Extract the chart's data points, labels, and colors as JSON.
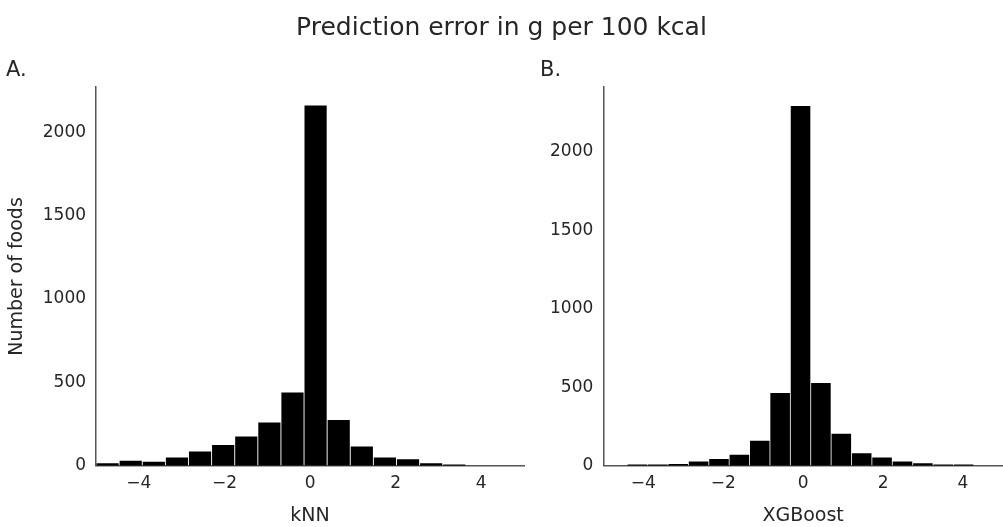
{
  "chart_data": [
    {
      "type": "histogram",
      "title": "A.",
      "xlabel": "kNN",
      "ylabel": "Number of foods",
      "annotations": [
        "Prediction error in g per 100 kcal"
      ],
      "color": "#000000",
      "grid": false,
      "bins": [
        -5,
        -4.46,
        -3.92,
        -3.38,
        -2.84,
        -2.3,
        -1.76,
        -1.22,
        -0.68,
        -0.14,
        0.4,
        0.94,
        1.48,
        2.02,
        2.56,
        3.1,
        3.64
      ],
      "values": [
        15,
        30,
        25,
        50,
        85,
        125,
        175,
        260,
        440,
        2160,
        275,
        115,
        50,
        40,
        15,
        8
      ],
      "xlim": [
        -5,
        5
      ],
      "xticks": [
        -4,
        -2,
        0,
        2,
        4
      ],
      "ylim": [
        0,
        2270
      ],
      "yticks": [
        0,
        500,
        1000,
        1500,
        2000
      ]
    },
    {
      "type": "histogram",
      "title": "B.",
      "xlabel": "XGBoost",
      "color": "#000000",
      "grid": false,
      "bins": [
        -4.4,
        -3.89,
        -3.38,
        -2.87,
        -2.36,
        -1.85,
        -1.34,
        -0.83,
        -0.32,
        0.19,
        0.7,
        1.21,
        1.72,
        2.23,
        2.74,
        3.25,
        3.76,
        4.27
      ],
      "values": [
        9,
        9,
        11,
        27,
        44,
        71,
        160,
        464,
        2290,
        527,
        204,
        80,
        53,
        27,
        16,
        9,
        9
      ],
      "xlim": [
        -5,
        5
      ],
      "xticks": [
        -4,
        -2,
        0,
        2,
        4
      ],
      "ylim": [
        0,
        2410
      ],
      "yticks": [
        0,
        500,
        1000,
        1500,
        2000
      ]
    }
  ]
}
